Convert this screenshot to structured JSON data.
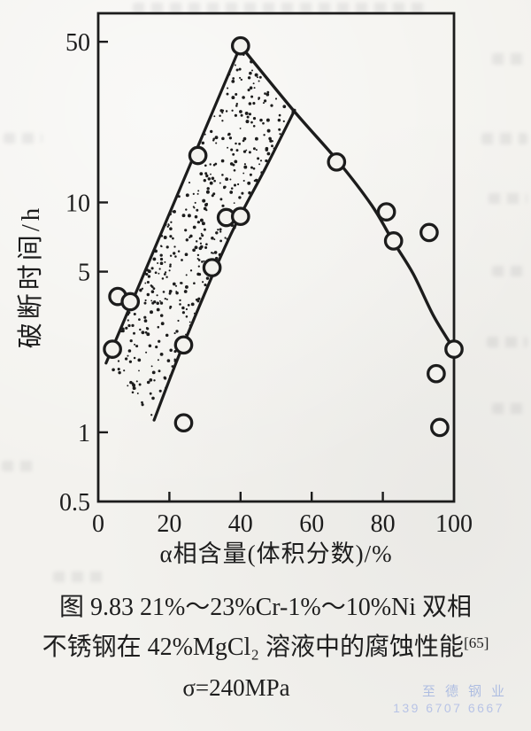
{
  "page": {
    "paper_color": "#f3f2ee",
    "ink_color": "#1c1c1c"
  },
  "chart_data": {
    "type": "scatter",
    "x_axis": {
      "label": "α相含量(体积分数)/%",
      "ticks": [
        0,
        20,
        40,
        60,
        80,
        100
      ],
      "range": [
        0,
        100
      ],
      "scale": "linear"
    },
    "y_axis": {
      "label": "破断时间/h",
      "ticks": [
        50,
        10,
        5,
        1,
        0.5
      ],
      "range": [
        0.5,
        66.5
      ],
      "scale": "log"
    },
    "grid": "off",
    "points": [
      [
        4,
        2.3
      ],
      [
        5.5,
        3.9
      ],
      [
        9,
        3.7
      ],
      [
        24,
        1.1
      ],
      [
        24,
        2.4
      ],
      [
        28,
        16
      ],
      [
        32,
        5.2
      ],
      [
        36,
        8.6
      ],
      [
        40,
        8.7
      ],
      [
        40,
        48
      ],
      [
        67,
        15
      ],
      [
        81,
        9.1
      ],
      [
        83,
        6.8
      ],
      [
        93,
        7.4
      ],
      [
        95,
        1.8
      ],
      [
        96,
        1.05
      ],
      [
        100,
        2.3
      ]
    ],
    "peak_point": [
      40,
      48
    ],
    "trend_curve": [
      [
        40,
        48
      ],
      [
        55,
        25
      ],
      [
        67.4,
        15.1
      ],
      [
        76.9,
        9.7
      ],
      [
        82.8,
        6.8
      ],
      [
        88.5,
        4.9
      ],
      [
        94.3,
        3.2
      ],
      [
        100,
        2.3
      ]
    ],
    "scatter_band": {
      "style": "stipple-dots",
      "upper_edge": [
        [
          2.2,
          2.0
        ],
        [
          40,
          48
        ]
      ],
      "lower_edge": [
        [
          15.7,
          1.13
        ],
        [
          23.9,
          2.4
        ],
        [
          36.6,
          6.9
        ],
        [
          47,
          14.1
        ],
        [
          55.2,
          25.2
        ]
      ]
    }
  },
  "caption": {
    "line1": "图 9.83  21%～23%Cr-1%～10%Ni 双相",
    "line2": "不锈钢在 42%MgCl₂ 溶液中的腐蚀性能",
    "reference": "[65]",
    "line3": "σ=240MPa"
  },
  "watermark": {
    "line1": "至德钢业",
    "line2": "139 6707 6667",
    "color": "#9fb2e0"
  }
}
